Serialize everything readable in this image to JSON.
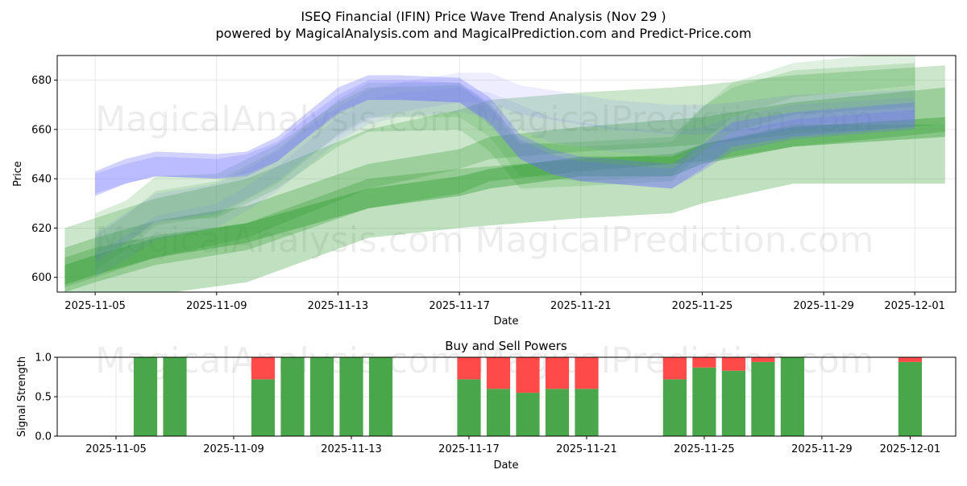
{
  "chart_data": [
    {
      "type": "area",
      "title_line1": "ISEQ Financial (IFIN) Price Wave Trend Analysis (Nov 29 )",
      "title_line2": "powered by MagicalAnalysis.com and MagicalPrediction.com and Predict-Price.com",
      "xlabel": "Date",
      "ylabel": "Price",
      "ylim": [
        594,
        690
      ],
      "xlim_days": [
        3.75,
        33.35
      ],
      "x_tick_days": [
        5,
        9,
        13,
        17,
        21,
        25,
        29,
        32
      ],
      "x_tick_labels": [
        "2025-11-05",
        "2025-11-09",
        "2025-11-13",
        "2025-11-17",
        "2025-11-21",
        "2025-11-25",
        "2025-11-29",
        "2025-12-01"
      ],
      "y_ticks": [
        600,
        620,
        640,
        660,
        680
      ],
      "green_bands": [
        {
          "days": [
            4,
            5,
            7,
            10,
            14,
            17,
            18,
            21,
            24,
            25,
            28,
            33
          ],
          "center": [
            601,
            605,
            612,
            618,
            632,
            637,
            640,
            645,
            645,
            650,
            657,
            661
          ],
          "half_width": 4,
          "opacity": 0.4
        },
        {
          "days": [
            4,
            5,
            7,
            10,
            14,
            17,
            18,
            21,
            24,
            25,
            28,
            33
          ],
          "center": [
            603,
            607,
            614,
            620,
            637,
            643,
            648,
            652,
            655,
            656,
            662,
            668
          ],
          "half_width": 9,
          "opacity": 0.3
        },
        {
          "days": [
            4,
            5,
            7,
            10,
            14,
            17,
            18,
            21,
            24,
            25,
            28,
            33
          ],
          "center": [
            608,
            612,
            620,
            628,
            648,
            656,
            660,
            663,
            665,
            666,
            670,
            674
          ],
          "half_width": 12,
          "opacity": 0.25
        },
        {
          "days": [
            4,
            5,
            7,
            10,
            14,
            17,
            18,
            21,
            24,
            25,
            28,
            33
          ],
          "center": [
            596,
            600,
            605,
            610,
            628,
            632,
            633,
            636,
            638,
            642,
            650,
            650
          ],
          "half_width": 12,
          "opacity": 0.3
        },
        {
          "days": [
            5,
            6,
            7,
            9,
            11,
            13,
            14,
            17,
            18,
            19,
            21,
            24,
            25,
            26,
            28,
            32
          ],
          "center": [
            617,
            622,
            632,
            633,
            645,
            662,
            668,
            669,
            660,
            645,
            646,
            648,
            660,
            668,
            675,
            678
          ],
          "half_width": 9,
          "opacity": 0.18
        },
        {
          "days": [
            5,
            6,
            7,
            9,
            11,
            13,
            14,
            17,
            18,
            19,
            21,
            24,
            25,
            26,
            28,
            32
          ],
          "center": [
            610,
            618,
            628,
            632,
            645,
            665,
            672,
            672,
            664,
            648,
            646,
            648,
            662,
            672,
            680,
            685
          ],
          "half_width": 7,
          "opacity": 0.14
        }
      ],
      "blue_bands": [
        {
          "days": [
            5,
            6,
            7,
            9,
            10,
            11,
            12,
            13,
            14,
            15,
            17,
            18,
            19,
            20,
            21,
            22,
            24,
            25,
            26,
            28,
            32
          ],
          "center": [
            638,
            643,
            646,
            645,
            646,
            652,
            662,
            672,
            677,
            677,
            676,
            668,
            653,
            647,
            644,
            643,
            641,
            649,
            658,
            662,
            666
          ],
          "half_width": 5,
          "opacity": 0.3
        },
        {
          "days": [
            5,
            6,
            7,
            9,
            10,
            11,
            12,
            13,
            14,
            15,
            17,
            18,
            19,
            20,
            21,
            22,
            24,
            25,
            26,
            28,
            32
          ],
          "center": [
            638,
            642,
            645,
            644,
            646,
            651,
            661,
            670,
            676,
            676,
            675,
            666,
            652,
            646,
            643,
            642,
            640,
            647,
            655,
            660,
            664
          ],
          "half_width": 4,
          "opacity": 0.22
        },
        {
          "days": [
            5,
            6,
            7,
            9,
            10,
            11,
            12,
            13,
            14,
            15,
            17,
            18,
            19,
            20,
            21,
            22,
            24,
            25,
            26,
            28,
            32
          ],
          "center": [
            612,
            620,
            628,
            632,
            638,
            645,
            655,
            663,
            670,
            673,
            677,
            677,
            672,
            670,
            668,
            666,
            664,
            664,
            665,
            668,
            670
          ],
          "half_width": 6,
          "opacity": 0.12
        },
        {
          "days": [
            5,
            6,
            7,
            9,
            10,
            11,
            12,
            13,
            14,
            15,
            17,
            18,
            19,
            20,
            21,
            22,
            24,
            25,
            26,
            28,
            32
          ],
          "center": [
            605,
            612,
            620,
            625,
            632,
            640,
            650,
            660,
            667,
            670,
            672,
            670,
            665,
            660,
            658,
            656,
            654,
            656,
            660,
            665,
            668
          ],
          "half_width": 5,
          "opacity": 0.1
        }
      ],
      "watermarks": [
        "MagicalAnalysis.com",
        "MagicalPrediction.com",
        "MagicalAnalysis.com",
        "MagicalPrediction.com"
      ]
    },
    {
      "type": "bar",
      "title": "Buy and Sell Powers",
      "xlabel": "Date",
      "ylabel": "Signal Strength",
      "ylim": [
        0,
        1
      ],
      "xlim_days": [
        3.0,
        33.55
      ],
      "x_tick_days": [
        5,
        9,
        13,
        17,
        21,
        25,
        29,
        32
      ],
      "x_tick_labels": [
        "2025-11-05",
        "2025-11-09",
        "2025-11-13",
        "2025-11-17",
        "2025-11-21",
        "2025-11-25",
        "2025-11-29",
        "2025-12-01"
      ],
      "y_ticks": [
        0.0,
        0.5,
        1.0
      ],
      "y_tick_labels": [
        "0.0",
        "0.5",
        "1.0"
      ],
      "colors": {
        "buy": "#4aa64a",
        "sell": "#ff4a4a"
      },
      "bars": [
        {
          "day": 6,
          "buy": 1.0,
          "sell": 0.0
        },
        {
          "day": 7,
          "buy": 1.0,
          "sell": 0.0
        },
        {
          "day": 10,
          "buy": 0.72,
          "sell": 0.28
        },
        {
          "day": 11,
          "buy": 1.0,
          "sell": 0.0
        },
        {
          "day": 12,
          "buy": 1.0,
          "sell": 0.0
        },
        {
          "day": 13,
          "buy": 1.0,
          "sell": 0.0
        },
        {
          "day": 14,
          "buy": 1.0,
          "sell": 0.0
        },
        {
          "day": 17,
          "buy": 0.72,
          "sell": 0.28
        },
        {
          "day": 18,
          "buy": 0.6,
          "sell": 0.4
        },
        {
          "day": 19,
          "buy": 0.55,
          "sell": 0.45
        },
        {
          "day": 20,
          "buy": 0.6,
          "sell": 0.4
        },
        {
          "day": 21,
          "buy": 0.6,
          "sell": 0.4
        },
        {
          "day": 24,
          "buy": 0.72,
          "sell": 0.28
        },
        {
          "day": 25,
          "buy": 0.87,
          "sell": 0.13
        },
        {
          "day": 26,
          "buy": 0.83,
          "sell": 0.17
        },
        {
          "day": 27,
          "buy": 0.94,
          "sell": 0.06
        },
        {
          "day": 28,
          "buy": 1.0,
          "sell": 0.0
        },
        {
          "day": 32,
          "buy": 0.94,
          "sell": 0.06
        }
      ],
      "watermarks": [
        "MagicalAnalysis.com",
        "MagicalPrediction.com"
      ]
    }
  ]
}
